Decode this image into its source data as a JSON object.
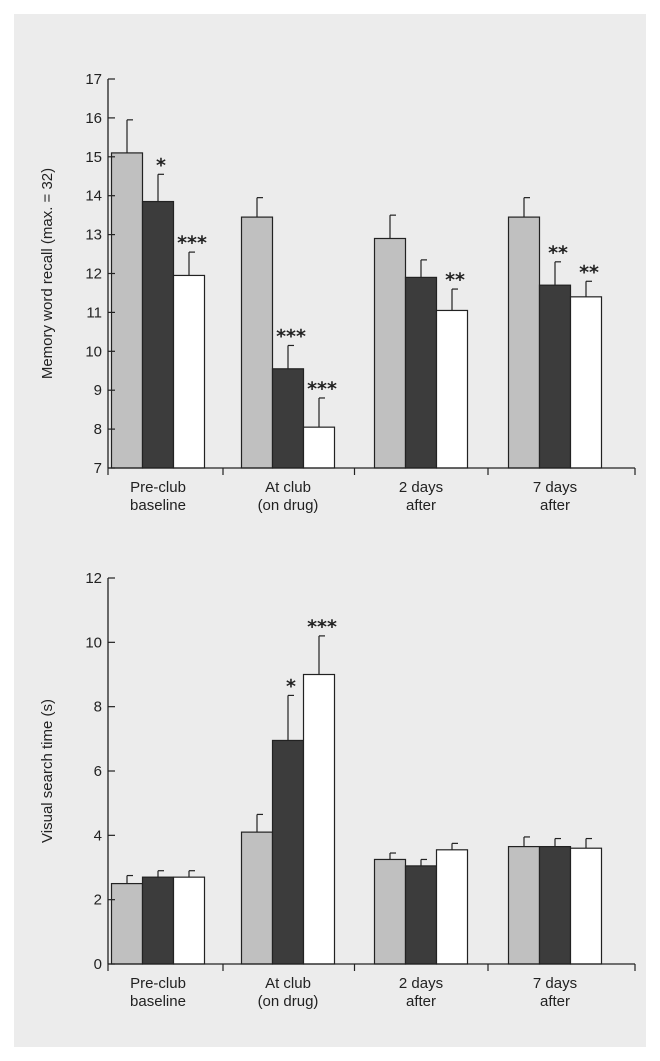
{
  "colors": {
    "background": "#ececec",
    "axis": "#222222",
    "series": [
      "#c0c0c0",
      "#3c3c3c",
      "#ffffff"
    ]
  },
  "chart_data": [
    {
      "type": "bar",
      "title": "",
      "xlabel": "",
      "ylabel": "Memory word recall (max. = 32)",
      "ylim": [
        7,
        17
      ],
      "yticks": [
        7,
        8,
        9,
        10,
        11,
        12,
        13,
        14,
        15,
        16,
        17
      ],
      "categories": [
        [
          "Pre-club",
          "baseline"
        ],
        [
          "At club",
          "(on drug)"
        ],
        [
          "2 days",
          "after"
        ],
        [
          "7 days",
          "after"
        ]
      ],
      "series": [
        {
          "values": [
            15.1,
            13.45,
            12.9,
            13.45
          ],
          "errors": [
            0.85,
            0.5,
            0.6,
            0.5
          ],
          "sig": [
            "",
            "",
            "",
            ""
          ]
        },
        {
          "values": [
            13.85,
            9.55,
            11.9,
            11.7
          ],
          "errors": [
            0.7,
            0.6,
            0.45,
            0.6
          ],
          "sig": [
            "*",
            "***",
            "",
            "**"
          ]
        },
        {
          "values": [
            11.95,
            8.05,
            11.05,
            11.4
          ],
          "errors": [
            0.6,
            0.75,
            0.55,
            0.4
          ],
          "sig": [
            "***",
            "***",
            "**",
            "**"
          ]
        }
      ],
      "grid": false,
      "legend": "none"
    },
    {
      "type": "bar",
      "title": "",
      "xlabel": "",
      "ylabel": "Visual search time (s)",
      "ylim": [
        0,
        12
      ],
      "yticks": [
        0,
        2,
        4,
        6,
        8,
        10,
        12
      ],
      "categories": [
        [
          "Pre-club",
          "baseline"
        ],
        [
          "At club",
          "(on drug)"
        ],
        [
          "2 days",
          "after"
        ],
        [
          "7 days",
          "after"
        ]
      ],
      "series": [
        {
          "values": [
            2.5,
            4.1,
            3.25,
            3.65
          ],
          "errors": [
            0.25,
            0.55,
            0.2,
            0.3
          ],
          "sig": [
            "",
            "",
            "",
            ""
          ]
        },
        {
          "values": [
            2.7,
            6.95,
            3.05,
            3.65
          ],
          "errors": [
            0.2,
            1.4,
            0.2,
            0.25
          ],
          "sig": [
            "",
            "*",
            "",
            ""
          ]
        },
        {
          "values": [
            2.7,
            9.0,
            3.55,
            3.6
          ],
          "errors": [
            0.2,
            1.2,
            0.2,
            0.3
          ],
          "sig": [
            "",
            "***",
            "",
            ""
          ]
        }
      ],
      "grid": false,
      "legend": "none"
    }
  ]
}
